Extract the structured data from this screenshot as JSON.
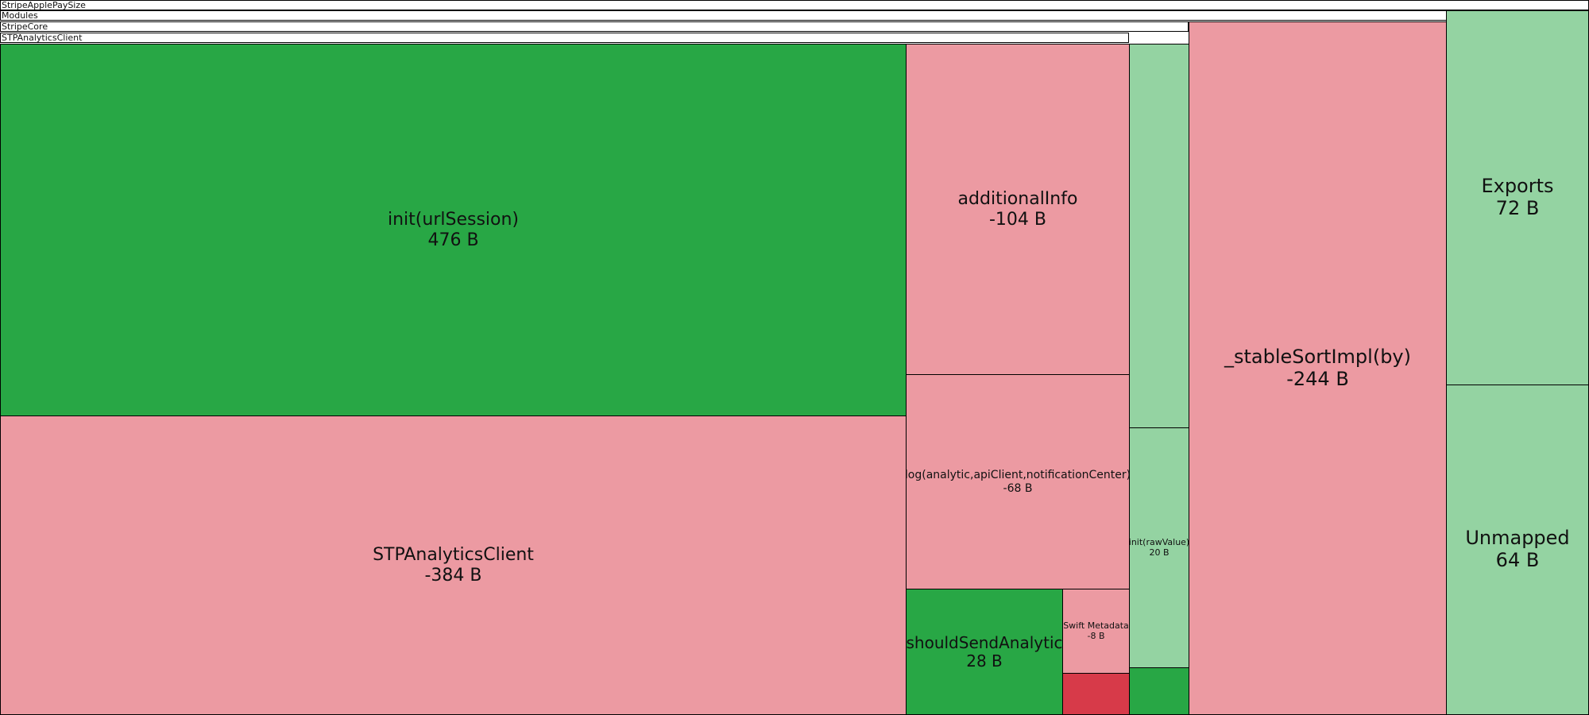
{
  "colors": {
    "growth_strong": "#28a745",
    "growth_light": "#94d3a2",
    "shrink_light": "#ec9aa2",
    "shrink_strong": "#d73a49",
    "border": "#000000"
  },
  "chart_data": {
    "type": "treemap",
    "title": "",
    "hierarchy": [
      {
        "name": "StripeApplePaySize"
      },
      {
        "name": "Modules"
      },
      {
        "name": "StripeCore"
      },
      {
        "name": "STPAnalyticsClient"
      }
    ],
    "nodes": [
      {
        "name": "init(urlSession)",
        "size_label": "476 B",
        "value": 476,
        "parent": "STPAnalyticsClient",
        "color": "#28a745"
      },
      {
        "name": "STPAnalyticsClient",
        "size_label": "-384 B",
        "value": -384,
        "parent": "STPAnalyticsClient",
        "color": "#ec9aa2"
      },
      {
        "name": "additionalInfo",
        "size_label": "-104 B",
        "value": -104,
        "parent": "STPAnalyticsClient",
        "color": "#ec9aa2"
      },
      {
        "name": "log(analytic,apiClient,notificationCenter)",
        "size_label": "-68 B",
        "value": -68,
        "parent": "STPAnalyticsClient",
        "color": "#ec9aa2"
      },
      {
        "name": "shouldSendAnalytic",
        "size_label": "28 B",
        "value": 28,
        "parent": "STPAnalyticsClient",
        "color": "#28a745"
      },
      {
        "name": "Swift Metadata",
        "size_label": "-8 B",
        "value": -8,
        "parent": "STPAnalyticsClient",
        "color": "#ec9aa2"
      },
      {
        "name": "",
        "size_label": "",
        "parent": "STPAnalyticsClient",
        "color": "#d73a49"
      },
      {
        "name": "",
        "size_label": "",
        "parent": "StripeCore",
        "color": "#94d3a2"
      },
      {
        "name": "init(rawValue)",
        "size_label": "20 B",
        "value": 20,
        "parent": "StripeCore",
        "color": "#94d3a2"
      },
      {
        "name": "",
        "size_label": "",
        "parent": "StripeCore",
        "color": "#28a745"
      },
      {
        "name": "_stableSortImpl(by)",
        "size_label": "-244 B",
        "value": -244,
        "parent": "Modules",
        "color": "#ec9aa2"
      },
      {
        "name": "Exports",
        "size_label": "72 B",
        "value": 72,
        "parent": "StripeApplePaySize",
        "color": "#94d3a2"
      },
      {
        "name": "Unmapped",
        "size_label": "64 B",
        "value": 64,
        "parent": "StripeApplePaySize",
        "color": "#94d3a2"
      }
    ]
  }
}
